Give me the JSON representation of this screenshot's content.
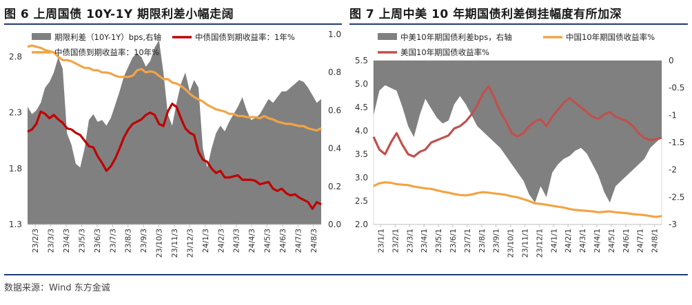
{
  "titles": {
    "left": "图 6 上周国债 10Y-1Y 期限利差小幅走阔",
    "right": "图 7 上周中美 10 年期国债利差倒挂幅度有所加深"
  },
  "source": "数据来源：Wind 东方金诚",
  "colors": {
    "bars": "#808080",
    "red": "#c00000",
    "orange": "#f2a444",
    "rose": "#c0504d"
  },
  "chart_data": [
    {
      "type": "line",
      "title": "上周国债 10Y-1Y 期限利差小幅走阔",
      "x_ticks": [
        "23/2/3",
        "23/3/3",
        "23/4/3",
        "23/5/3",
        "23/6/3",
        "23/7/3",
        "23/8/3",
        "23/9/3",
        "23/10/3",
        "23/11/3",
        "23/12/3",
        "24/1/3",
        "24/2/3",
        "24/3/3",
        "24/4/3",
        "24/5/3",
        "24/6/3",
        "24/7/3",
        "24/8/3"
      ],
      "y_left": {
        "ylim": [
          1.3,
          3.0
        ],
        "ticks": [
          "1.3",
          "1.8",
          "2.3",
          "2.8"
        ]
      },
      "y_right": {
        "ylim": [
          0.0,
          1.0
        ],
        "ticks": [
          "0.0",
          "0.2",
          "0.4",
          "0.6",
          "0.8",
          "1.0"
        ]
      },
      "series": [
        {
          "name": "期限利差（10Y-1Y）bps,右轴",
          "kind": "area",
          "axis": "right",
          "values": [
            0.62,
            0.58,
            0.6,
            0.64,
            0.72,
            0.75,
            0.8,
            0.88,
            0.82,
            0.48,
            0.42,
            0.32,
            0.3,
            0.4,
            0.55,
            0.58,
            0.54,
            0.55,
            0.52,
            0.56,
            0.63,
            0.7,
            0.78,
            0.83,
            0.88,
            0.9,
            0.88,
            0.83,
            0.86,
            0.93,
            0.97,
            0.8,
            0.58,
            0.52,
            0.64,
            0.74,
            0.8,
            0.7,
            0.76,
            0.72,
            0.4,
            0.3,
            0.4,
            0.48,
            0.52,
            0.49,
            0.54,
            0.58,
            0.62,
            0.67,
            0.6,
            0.55,
            0.56,
            0.58,
            0.62,
            0.66,
            0.64,
            0.67,
            0.7,
            0.7,
            0.72,
            0.74,
            0.76,
            0.75,
            0.72,
            0.68,
            0.64,
            0.66
          ]
        },
        {
          "name": "中债国债到期收益率：1年%",
          "kind": "line",
          "axis": "left",
          "values": [
            2.13,
            2.15,
            2.2,
            2.31,
            2.29,
            2.25,
            2.28,
            2.24,
            2.21,
            2.16,
            2.15,
            2.12,
            2.1,
            2.05,
            2.0,
            1.99,
            1.91,
            1.85,
            1.78,
            1.82,
            1.89,
            1.98,
            2.08,
            2.15,
            2.2,
            2.22,
            2.24,
            2.28,
            2.3,
            2.28,
            2.2,
            2.18,
            2.31,
            2.38,
            2.35,
            2.25,
            2.16,
            2.12,
            2.1,
            1.95,
            1.88,
            1.86,
            1.8,
            1.76,
            1.78,
            1.72,
            1.72,
            1.73,
            1.74,
            1.7,
            1.7,
            1.7,
            1.69,
            1.66,
            1.67,
            1.68,
            1.62,
            1.6,
            1.62,
            1.58,
            1.56,
            1.57,
            1.54,
            1.52,
            1.5,
            1.44,
            1.5,
            1.48
          ]
        },
        {
          "name": "中债国债到期收益率：10年%",
          "kind": "line",
          "axis": "left",
          "values": [
            2.89,
            2.9,
            2.89,
            2.88,
            2.86,
            2.85,
            2.84,
            2.8,
            2.77,
            2.77,
            2.76,
            2.74,
            2.72,
            2.7,
            2.7,
            2.68,
            2.68,
            2.66,
            2.66,
            2.65,
            2.63,
            2.62,
            2.62,
            2.62,
            2.63,
            2.68,
            2.69,
            2.66,
            2.67,
            2.66,
            2.63,
            2.6,
            2.6,
            2.57,
            2.56,
            2.54,
            2.51,
            2.47,
            2.44,
            2.42,
            2.4,
            2.37,
            2.35,
            2.33,
            2.32,
            2.31,
            2.29,
            2.29,
            2.27,
            2.27,
            2.26,
            2.26,
            2.26,
            2.25,
            2.27,
            2.25,
            2.24,
            2.22,
            2.21,
            2.2,
            2.2,
            2.19,
            2.18,
            2.18,
            2.16,
            2.15,
            2.14,
            2.16
          ]
        }
      ]
    },
    {
      "type": "line",
      "title": "上周中美 10 年期国债利差倒挂幅度有所加深",
      "x_ticks": [
        "23/1/1",
        "23/2/1",
        "23/3/1",
        "23/4/1",
        "23/5/1",
        "23/6/1",
        "23/7/1",
        "23/8/1",
        "23/9/1",
        "23/10/1",
        "23/11/1",
        "23/12/1",
        "24/1/1",
        "24/2/1",
        "24/3/1",
        "24/4/1",
        "24/5/1",
        "24/6/1",
        "24/7/1",
        "24/8/1"
      ],
      "y_left": {
        "ylim": [
          2.0,
          5.5
        ],
        "ticks": [
          "2.0",
          "2.5",
          "3.0",
          "3.5",
          "4.0",
          "4.5",
          "5.0",
          "5.5"
        ]
      },
      "y_right": {
        "ylim": [
          -3.0,
          0.0
        ],
        "ticks": [
          "-3",
          "-2.5",
          "-2",
          "-1.5",
          "-1",
          "-0.5",
          "0"
        ]
      },
      "series": [
        {
          "name": "中美10年期国债利差bps，右轴",
          "kind": "area_down",
          "axis": "right",
          "values": [
            -1.0,
            -0.55,
            -0.45,
            -0.5,
            -0.55,
            -0.85,
            -1.2,
            -1.4,
            -1.0,
            -0.7,
            -0.88,
            -1.05,
            -1.15,
            -1.1,
            -0.8,
            -0.65,
            -0.8,
            -1.0,
            -1.2,
            -1.3,
            -1.4,
            -1.5,
            -1.6,
            -1.75,
            -1.9,
            -2.05,
            -2.2,
            -2.45,
            -2.6,
            -2.3,
            -2.5,
            -2.05,
            -1.9,
            -1.8,
            -1.75,
            -1.65,
            -1.6,
            -1.7,
            -1.9,
            -2.1,
            -2.4,
            -2.6,
            -2.3,
            -2.2,
            -2.1,
            -2.0,
            -1.9,
            -1.8,
            -1.6,
            -1.5,
            -1.4
          ]
        },
        {
          "name": "中国10年期国债收益率%",
          "kind": "line",
          "axis": "left",
          "values": [
            2.82,
            2.88,
            2.9,
            2.89,
            2.86,
            2.85,
            2.84,
            2.81,
            2.79,
            2.77,
            2.76,
            2.73,
            2.7,
            2.68,
            2.65,
            2.63,
            2.62,
            2.64,
            2.67,
            2.69,
            2.68,
            2.66,
            2.65,
            2.63,
            2.6,
            2.58,
            2.54,
            2.5,
            2.45,
            2.44,
            2.42,
            2.4,
            2.38,
            2.36,
            2.33,
            2.31,
            2.3,
            2.29,
            2.28,
            2.26,
            2.27,
            2.28,
            2.26,
            2.25,
            2.24,
            2.22,
            2.21,
            2.2,
            2.18,
            2.16,
            2.18
          ]
        },
        {
          "name": "美国10年期国债收益率%",
          "kind": "line",
          "axis": "left",
          "values": [
            3.87,
            3.6,
            3.5,
            3.75,
            3.95,
            3.7,
            3.5,
            3.45,
            3.55,
            3.6,
            3.75,
            3.8,
            3.85,
            3.9,
            4.05,
            4.1,
            4.2,
            4.35,
            4.55,
            4.8,
            4.95,
            4.7,
            4.4,
            4.2,
            3.95,
            3.88,
            3.95,
            4.1,
            4.2,
            4.25,
            4.1,
            4.3,
            4.45,
            4.6,
            4.7,
            4.6,
            4.5,
            4.4,
            4.3,
            4.25,
            4.35,
            4.4,
            4.3,
            4.25,
            4.2,
            4.1,
            3.95,
            3.85,
            3.8,
            3.82,
            3.85
          ]
        }
      ]
    }
  ]
}
